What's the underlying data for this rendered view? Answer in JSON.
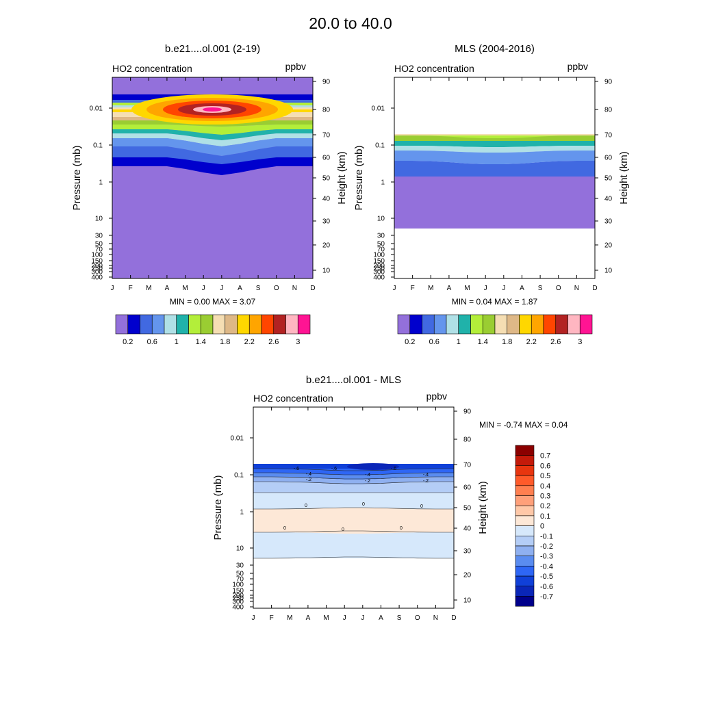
{
  "page_title": "20.0 to  40.0",
  "chart_data": [
    {
      "type": "heatmap",
      "title": "b.e21....ol.001 (2-19)",
      "subtitle_left": "HO2 concentration",
      "subtitle_right": "ppbv",
      "ylabel": "Pressure (mb)",
      "y2label": "Height (km)",
      "months": [
        "J",
        "F",
        "M",
        "A",
        "M",
        "J",
        "J",
        "A",
        "S",
        "O",
        "N",
        "D"
      ],
      "pressure_ticks": [
        "0.01",
        "0.1",
        "1",
        "10",
        "30",
        "50",
        "70",
        "100",
        "150",
        "200",
        "250",
        "300",
        "400"
      ],
      "height_ticks": [
        "90",
        "80",
        "70",
        "60",
        "50",
        "40",
        "30",
        "20",
        "10"
      ],
      "minmax_label": "MIN =   0.00  MAX =   3.07",
      "min": 0.0,
      "max": 3.07,
      "colorbar_labels": [
        "0.2",
        "0.6",
        "1",
        "1.4",
        "1.8",
        "2.2",
        "2.6",
        "3"
      ]
    },
    {
      "type": "heatmap",
      "title": "MLS (2004-2016)",
      "subtitle_left": "HO2 concentration",
      "subtitle_right": "ppbv",
      "ylabel": "Pressure (mb)",
      "y2label": "Height (km)",
      "months": [
        "J",
        "F",
        "M",
        "A",
        "M",
        "J",
        "J",
        "A",
        "S",
        "O",
        "N",
        "D"
      ],
      "pressure_ticks": [
        "0.01",
        "0.1",
        "1",
        "10",
        "30",
        "50",
        "70",
        "100",
        "150",
        "200",
        "250",
        "300",
        "400"
      ],
      "height_ticks": [
        "90",
        "80",
        "70",
        "60",
        "50",
        "40",
        "30",
        "20",
        "10"
      ],
      "minmax_label": "MIN =   0.04  MAX =   1.87",
      "min": 0.04,
      "max": 1.87,
      "colorbar_labels": [
        "0.2",
        "0.6",
        "1",
        "1.4",
        "1.8",
        "2.2",
        "2.6",
        "3"
      ]
    },
    {
      "type": "heatmap",
      "title": "b.e21....ol.001 - MLS",
      "subtitle_left": "HO2 concentration",
      "subtitle_right": "ppbv",
      "ylabel": "Pressure (mb)",
      "y2label": "Height (km)",
      "months": [
        "J",
        "F",
        "M",
        "A",
        "M",
        "J",
        "J",
        "A",
        "S",
        "O",
        "N",
        "D"
      ],
      "pressure_ticks": [
        "0.01",
        "0.1",
        "1",
        "10",
        "30",
        "50",
        "70",
        "100",
        "150",
        "200",
        "250",
        "300",
        "400"
      ],
      "height_ticks": [
        "90",
        "80",
        "70",
        "60",
        "50",
        "40",
        "30",
        "20",
        "10"
      ],
      "minmax_label": "MIN =  -0.74  MAX =   0.04",
      "min": -0.74,
      "max": 0.04,
      "contour_labels": [
        "-.6",
        "-.6",
        "-.6",
        "-.4",
        "-.4",
        "-.4",
        "-.2",
        "-.2",
        "-.2",
        "0",
        "0",
        "0",
        "0",
        "0",
        "0"
      ],
      "colorbar_labels": [
        "0.7",
        "0.6",
        "0.5",
        "0.4",
        "0.3",
        "0.2",
        "0.1",
        "0",
        "-0.1",
        "-0.2",
        "-0.3",
        "-0.4",
        "-0.5",
        "-0.6",
        "-0.7"
      ]
    }
  ],
  "colors": {
    "seq": [
      "#9370db",
      "#0000cd",
      "#4169e1",
      "#6495ed",
      "#b0e0e6",
      "#20b2aa",
      "#b3ee3a",
      "#9acd32",
      "#f5deb3",
      "#deb887",
      "#ffd700",
      "#ffa500",
      "#ff4500",
      "#b22222",
      "#ffb6c1",
      "#ff1493"
    ],
    "div": [
      "#8b0000",
      "#c41a0a",
      "#e8350f",
      "#ff5a2a",
      "#ff7f50",
      "#ffa07a",
      "#ffc8a8",
      "#fde8d7",
      "#d6e8fb",
      "#b4cdf6",
      "#8fb0f0",
      "#5a8cf0",
      "#2e66f5",
      "#1040d8",
      "#0a26b8",
      "#00008b"
    ]
  }
}
